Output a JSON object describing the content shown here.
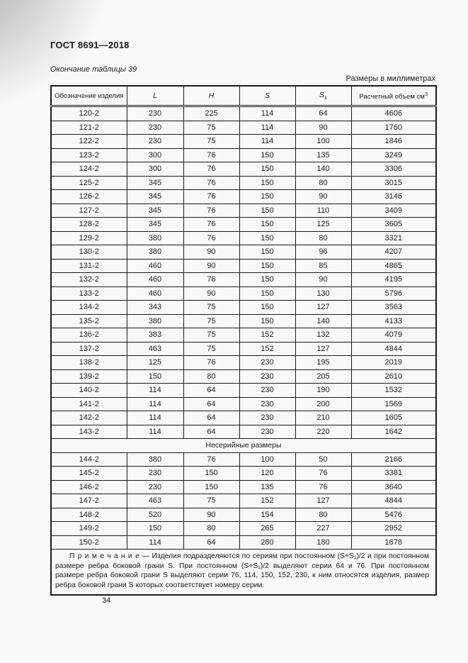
{
  "page": {
    "header": "ГОСТ 8691—2018",
    "table_caption": "Окончание таблицы 39",
    "units_note": "Размеры в миллиметрах",
    "page_number": "34"
  },
  "table": {
    "headers": [
      {
        "label": "Обозначение изделия"
      },
      {
        "label": "L"
      },
      {
        "label": "H"
      },
      {
        "label": "S"
      },
      {
        "label": "S",
        "sub": "1"
      },
      {
        "label": "Расчетный объем см",
        "sup": "3"
      }
    ],
    "rows": [
      {
        "type": "data",
        "cells": [
          "120-2",
          "230",
          "225",
          "114",
          "64",
          "4606"
        ]
      },
      {
        "type": "data",
        "cells": [
          "121-2",
          "230",
          "75",
          "114",
          "90",
          "1760"
        ]
      },
      {
        "type": "data",
        "cells": [
          "122-2",
          "230",
          "75",
          "114",
          "100",
          "1846"
        ]
      },
      {
        "type": "data",
        "cells": [
          "123-2",
          "300",
          "76",
          "150",
          "135",
          "3249"
        ]
      },
      {
        "type": "data",
        "cells": [
          "124-2",
          "300",
          "76",
          "150",
          "140",
          "3306"
        ]
      },
      {
        "type": "data",
        "cells": [
          "125-2",
          "345",
          "76",
          "150",
          "80",
          "3015"
        ]
      },
      {
        "type": "data",
        "cells": [
          "126-2",
          "345",
          "76",
          "150",
          "90",
          "3146"
        ]
      },
      {
        "type": "data",
        "cells": [
          "127-2",
          "345",
          "76",
          "150",
          "110",
          "3409"
        ]
      },
      {
        "type": "data",
        "cells": [
          "128-2",
          "345",
          "76",
          "150",
          "125",
          "3605"
        ]
      },
      {
        "type": "data",
        "cells": [
          "129-2",
          "380",
          "76",
          "150",
          "80",
          "3321"
        ]
      },
      {
        "type": "data",
        "cells": [
          "130-2",
          "380",
          "90",
          "150",
          "96",
          "4207"
        ]
      },
      {
        "type": "data",
        "cells": [
          "131-2",
          "460",
          "90",
          "150",
          "85",
          "4865"
        ]
      },
      {
        "type": "data",
        "cells": [
          "132-2",
          "460",
          "76",
          "150",
          "90",
          "4195"
        ]
      },
      {
        "type": "data",
        "cells": [
          "133-2",
          "460",
          "90",
          "150",
          "130",
          "5796"
        ]
      },
      {
        "type": "data",
        "cells": [
          "134-2",
          "343",
          "75",
          "150",
          "127",
          "3563"
        ]
      },
      {
        "type": "data",
        "cells": [
          "135-2",
          "380",
          "75",
          "150",
          "140",
          "4133"
        ]
      },
      {
        "type": "data",
        "cells": [
          "136-2",
          "383",
          "75",
          "152",
          "132",
          "4079"
        ]
      },
      {
        "type": "data",
        "cells": [
          "137-2",
          "463",
          "75",
          "152",
          "127",
          "4844"
        ]
      },
      {
        "type": "data",
        "cells": [
          "138-2",
          "125",
          "76",
          "230",
          "195",
          "2019"
        ]
      },
      {
        "type": "data",
        "cells": [
          "139-2",
          "150",
          "80",
          "230",
          "205",
          "2610"
        ]
      },
      {
        "type": "data",
        "cells": [
          "140-2",
          "114",
          "64",
          "230",
          "190",
          "1532"
        ]
      },
      {
        "type": "data",
        "cells": [
          "141-2",
          "114",
          "64",
          "230",
          "200",
          "1569"
        ]
      },
      {
        "type": "data",
        "cells": [
          "142-2",
          "114",
          "64",
          "230",
          "210",
          "1605"
        ]
      },
      {
        "type": "data",
        "cells": [
          "143-2",
          "114",
          "64",
          "230",
          "220",
          "1642"
        ]
      },
      {
        "type": "section",
        "label": "Несерийные размеры"
      },
      {
        "type": "data",
        "cells": [
          "144-2",
          "380",
          "76",
          "100",
          "50",
          "2166"
        ]
      },
      {
        "type": "data",
        "cells": [
          "145-2",
          "230",
          "150",
          "120",
          "76",
          "3381"
        ]
      },
      {
        "type": "data",
        "cells": [
          "146-2",
          "230",
          "150",
          "135",
          "76",
          "3640"
        ]
      },
      {
        "type": "data",
        "cells": [
          "147-2",
          "463",
          "75",
          "152",
          "127",
          "4844"
        ]
      },
      {
        "type": "data",
        "cells": [
          "148-2",
          "520",
          "90",
          "154",
          "80",
          "5476"
        ]
      },
      {
        "type": "data",
        "cells": [
          "149-2",
          "150",
          "80",
          "265",
          "227",
          "2952"
        ]
      },
      {
        "type": "data",
        "cells": [
          "150-2",
          "114",
          "64",
          "280",
          "180",
          "1678"
        ]
      }
    ],
    "note": {
      "label": "П р и м е ч а н и е",
      "text": " — Изделия подразделяются по сериям при постоянном (S+S₁)/2 и при постоянном размере ребра боковой грани S. При постоянном (S+S₁)/2 выделяют серии 64 и 76. При постоянном размере ребра боковой грани S выделяют серии 76, 114, 150, 152, 230, к ним относятся изделия, размер ребра боковой грани S которых соответствует номеру серии."
    }
  }
}
